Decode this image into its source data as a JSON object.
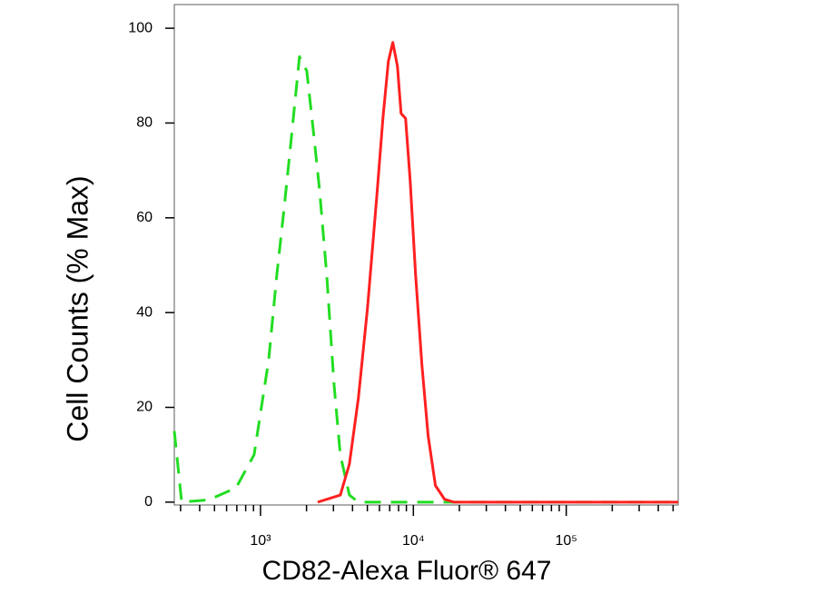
{
  "chart_data": {
    "type": "line",
    "y_label": "Cell Counts (% Max)",
    "x_label": "CD82-Alexa Fluor® 647",
    "xscale": "log",
    "xlim": [
      273,
      540000
    ],
    "xticks": [
      {
        "value": 1000,
        "label": "10³"
      },
      {
        "value": 10000,
        "label": "10⁴"
      },
      {
        "value": 100000,
        "label": "10⁵"
      }
    ],
    "xminorticks": [
      300,
      400,
      500,
      600,
      700,
      800,
      900,
      2000,
      3000,
      4000,
      5000,
      6000,
      7000,
      8000,
      9000,
      20000,
      30000,
      40000,
      50000,
      60000,
      70000,
      80000,
      90000,
      200000,
      300000,
      400000,
      500000
    ],
    "ylim": [
      -0.6,
      105
    ],
    "yticks": [
      0,
      20,
      40,
      60,
      80,
      100
    ],
    "series": [
      {
        "color": "#22dd22",
        "dash": true,
        "x": [
          273,
          305,
          459,
          691,
          908,
          1131,
          1279,
          1427,
          1570,
          1799,
          2007,
          2240,
          2431,
          2711,
          3024,
          3326,
          3814,
          4373,
          18370,
          540000
        ],
        "values": [
          15,
          0,
          0.5,
          3,
          10,
          30,
          48,
          62,
          75,
          94,
          91,
          77,
          66,
          48,
          25,
          10,
          1.5,
          0,
          0,
          0
        ]
      },
      {
        "color": "#ff2020",
        "dash": false,
        "x": [
          2366,
          3328,
          3813,
          4370,
          5012,
          5747,
          6321,
          6860,
          7336,
          7866,
          8310,
          8892,
          9522,
          10340,
          11370,
          12490,
          13940,
          16000,
          18370,
          540000
        ],
        "values": [
          0,
          1.5,
          8,
          22,
          41,
          64,
          81,
          93,
          97,
          92,
          82,
          81,
          68,
          48,
          29,
          14,
          3.5,
          0.6,
          0,
          0
        ]
      }
    ]
  }
}
